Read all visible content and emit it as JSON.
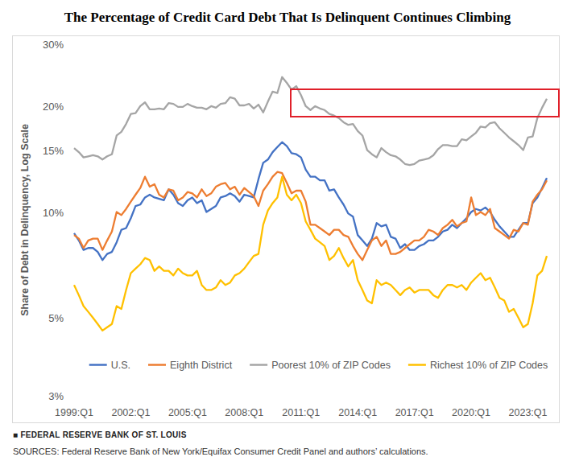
{
  "chart_data": {
    "type": "line",
    "title": "The Percentage of Credit Card Debt That Is Delinquent Continues Climbing",
    "y_label": "Share of Debt in Delinquency, Log Scale",
    "publisher": "■ FEDERAL RESERVE BANK OF ST. LOUIS",
    "source": "SOURCES: Federal Reserve Bank of New York/Equifax Consumer Credit Panel and authors’ calculations.",
    "log": "y",
    "grid": false,
    "legend": "bottom",
    "ylim": [
      3,
      30
    ],
    "yticks": [
      {
        "value": 3,
        "label": "3%"
      },
      {
        "value": 5,
        "label": "5%"
      },
      {
        "value": 10,
        "label": "10%"
      },
      {
        "value": 15,
        "label": "15%"
      },
      {
        "value": 20,
        "label": "20%"
      },
      {
        "value": 30,
        "label": "30%"
      }
    ],
    "categories": [
      "1999:Q1",
      null,
      null,
      null,
      null,
      null,
      null,
      null,
      null,
      null,
      null,
      null,
      "2002:Q1",
      null,
      null,
      null,
      null,
      null,
      null,
      null,
      null,
      null,
      null,
      null,
      "2005:Q1",
      null,
      null,
      null,
      null,
      null,
      null,
      null,
      null,
      null,
      null,
      null,
      "2008:Q1",
      null,
      null,
      null,
      null,
      null,
      null,
      null,
      null,
      null,
      null,
      null,
      "2011:Q1",
      null,
      null,
      null,
      null,
      null,
      null,
      null,
      null,
      null,
      null,
      null,
      "2014:Q1",
      null,
      null,
      null,
      null,
      null,
      null,
      null,
      null,
      null,
      null,
      null,
      "2017:Q1",
      null,
      null,
      null,
      null,
      null,
      null,
      null,
      null,
      null,
      null,
      null,
      "2020:Q1",
      null,
      null,
      null,
      null,
      null,
      null,
      null,
      null,
      null,
      null,
      null,
      "2023:Q1",
      null,
      null,
      null,
      null
    ],
    "series": [
      {
        "name": "U.S.",
        "color": "#4472c4",
        "values": [
          8.7,
          8.3,
          7.8,
          7.9,
          7.9,
          7.7,
          7.3,
          7.6,
          7.7,
          8.2,
          8.9,
          9.0,
          9.6,
          10.4,
          10.5,
          11.0,
          11.2,
          11.0,
          10.9,
          10.8,
          11.6,
          11.2,
          10.6,
          10.4,
          10.8,
          11.0,
          10.6,
          10.8,
          10.0,
          10.2,
          10.4,
          11.0,
          11.1,
          11.3,
          11.1,
          10.7,
          11.2,
          11.1,
          11.0,
          12.4,
          13.8,
          14.1,
          14.8,
          15.3,
          15.8,
          15.4,
          14.7,
          14.6,
          14.3,
          13.2,
          12.6,
          12.6,
          12.3,
          12.3,
          11.5,
          11.6,
          11.0,
          10.5,
          9.9,
          9.7,
          8.6,
          8.3,
          8.0,
          8.4,
          9.3,
          9.1,
          9.2,
          8.5,
          8.4,
          7.9,
          8.1,
          7.8,
          7.8,
          8.0,
          8.1,
          8.3,
          8.3,
          8.5,
          8.8,
          8.9,
          9.2,
          9.0,
          9.3,
          9.6,
          10.0,
          10.2,
          10.1,
          10.3,
          10.0,
          9.5,
          9.1,
          8.8,
          8.5,
          8.5,
          8.9,
          9.3,
          9.3,
          10.6,
          11.0,
          11.7,
          12.5
        ]
      },
      {
        "name": "Eighth District",
        "color": "#ed7d31",
        "values": [
          8.6,
          8.4,
          7.9,
          8.3,
          8.4,
          8.4,
          7.8,
          8.3,
          8.8,
          10.0,
          9.8,
          10.2,
          10.7,
          11.2,
          11.7,
          12.6,
          11.8,
          12.0,
          11.2,
          11.0,
          11.6,
          11.5,
          10.8,
          11.0,
          11.4,
          11.3,
          11.0,
          11.6,
          11.1,
          11.3,
          11.8,
          12.0,
          12.1,
          11.6,
          11.8,
          11.2,
          11.7,
          11.4,
          11.1,
          10.4,
          11.5,
          12.0,
          12.6,
          13.0,
          12.9,
          12.1,
          11.3,
          11.5,
          11.5,
          10.7,
          9.2,
          9.2,
          9.0,
          8.8,
          8.6,
          8.9,
          8.9,
          8.6,
          8.5,
          8.0,
          7.6,
          7.3,
          7.8,
          8.3,
          8.5,
          8.0,
          8.3,
          7.6,
          7.6,
          7.7,
          7.9,
          8.1,
          8.3,
          8.3,
          8.5,
          8.9,
          8.8,
          8.6,
          9.0,
          9.2,
          9.5,
          9.1,
          9.3,
          9.4,
          11.0,
          9.8,
          10.0,
          9.8,
          10.2,
          9.0,
          8.8,
          8.6,
          8.4,
          8.9,
          8.8,
          9.3,
          9.2,
          10.7,
          11.2,
          11.6,
          12.3
        ]
      },
      {
        "name": "Poorest 10% of ZIP Codes",
        "color": "#a5a5a5",
        "values": [
          15.2,
          14.8,
          14.3,
          14.4,
          14.5,
          14.4,
          14.1,
          14.4,
          14.6,
          16.5,
          16.9,
          17.8,
          19.0,
          19.1,
          20.0,
          20.5,
          19.6,
          19.6,
          19.7,
          19.6,
          20.4,
          20.3,
          19.9,
          19.9,
          20.3,
          20.0,
          19.8,
          19.8,
          19.6,
          20.0,
          19.8,
          20.3,
          20.4,
          21.2,
          21.0,
          20.1,
          20.1,
          20.3,
          19.7,
          20.2,
          19.2,
          20.6,
          22.0,
          21.8,
          24.2,
          23.3,
          22.3,
          22.8,
          21.5,
          20.0,
          19.5,
          20.0,
          19.7,
          19.5,
          19.0,
          18.8,
          18.5,
          18.0,
          17.7,
          17.8,
          17.0,
          16.5,
          15.0,
          14.6,
          14.3,
          15.2,
          14.8,
          14.5,
          14.4,
          14.1,
          13.7,
          13.6,
          13.7,
          14.0,
          14.1,
          14.2,
          14.5,
          15.1,
          15.5,
          15.5,
          15.4,
          15.4,
          16.1,
          16.0,
          16.4,
          16.8,
          17.5,
          17.4,
          17.9,
          18.0,
          17.3,
          16.8,
          16.3,
          15.9,
          15.5,
          15.0,
          16.3,
          16.4,
          18.5,
          19.8,
          21.0
        ]
      },
      {
        "name": "Richest 10% of ZIP Codes",
        "color": "#ffc000",
        "values": [
          6.2,
          5.8,
          5.4,
          5.2,
          5.0,
          4.8,
          4.6,
          4.7,
          4.8,
          5.4,
          5.3,
          6.0,
          6.7,
          6.9,
          7.1,
          7.4,
          7.3,
          6.8,
          7.0,
          6.8,
          6.8,
          6.6,
          6.9,
          6.7,
          6.6,
          6.6,
          6.8,
          6.2,
          6.0,
          6.0,
          6.1,
          6.4,
          6.2,
          6.3,
          6.6,
          6.7,
          6.9,
          7.2,
          7.5,
          7.6,
          9.2,
          10.1,
          10.6,
          11.0,
          12.6,
          11.2,
          10.8,
          11.2,
          10.6,
          9.4,
          8.9,
          8.4,
          8.2,
          8.0,
          7.3,
          7.5,
          7.9,
          7.4,
          7.0,
          7.3,
          6.4,
          6.0,
          5.6,
          5.5,
          6.4,
          6.2,
          6.3,
          6.2,
          6.0,
          5.8,
          6.0,
          6.1,
          5.9,
          6.0,
          6.0,
          6.0,
          5.8,
          5.7,
          6.0,
          6.2,
          6.2,
          6.1,
          6.2,
          6.0,
          6.3,
          6.5,
          6.7,
          6.4,
          6.5,
          6.1,
          5.7,
          5.6,
          5.2,
          5.3,
          5.0,
          4.7,
          4.8,
          5.5,
          6.6,
          6.8,
          7.5
        ]
      }
    ]
  }
}
